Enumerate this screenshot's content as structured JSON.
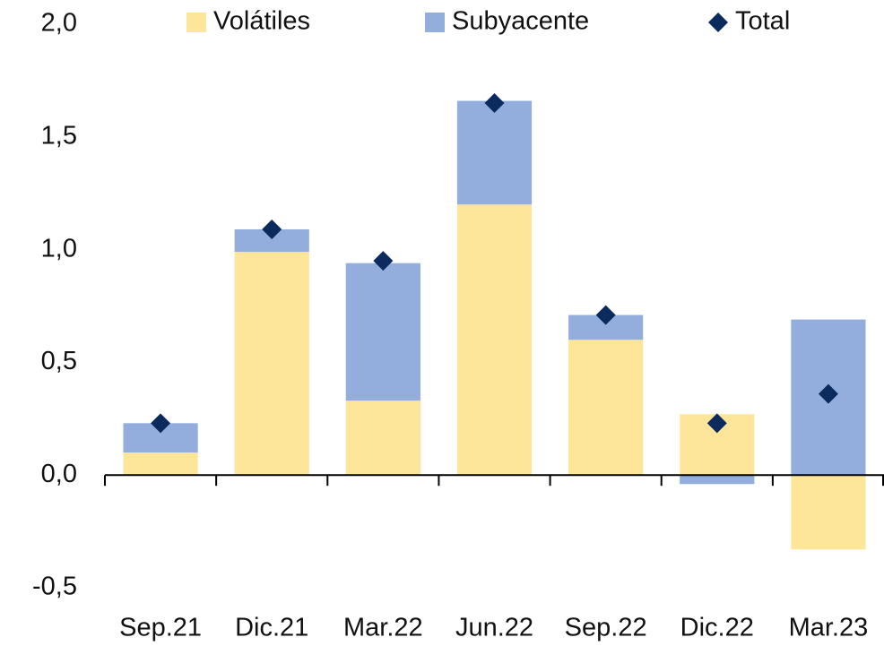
{
  "chart_data": {
    "type": "bar",
    "stacked": true,
    "categories": [
      "Sep.21",
      "Dic.21",
      "Mar.22",
      "Jun.22",
      "Sep.22",
      "Dic.22",
      "Mar.23"
    ],
    "series": [
      {
        "name": "Volátiles",
        "type": "bar",
        "color": "#fde69a",
        "values": [
          0.1,
          0.99,
          0.33,
          1.2,
          0.6,
          0.27,
          -0.33
        ]
      },
      {
        "name": "Subyacente",
        "type": "bar",
        "color": "#93addc",
        "values": [
          0.13,
          0.1,
          0.61,
          0.46,
          0.11,
          -0.04,
          0.69
        ]
      },
      {
        "name": "Total",
        "type": "point",
        "color": "#0b2a5e",
        "values": [
          0.23,
          1.09,
          0.95,
          1.65,
          0.71,
          0.23,
          0.36
        ]
      }
    ],
    "ylim": [
      -0.5,
      2.0
    ],
    "yticks": [
      {
        "value": -0.5,
        "label": "-0,5"
      },
      {
        "value": 0,
        "label": "0,0"
      },
      {
        "value": 0.5,
        "label": "0,5"
      },
      {
        "value": 1.0,
        "label": "1,0"
      },
      {
        "value": 1.5,
        "label": "1,5"
      },
      {
        "value": 2.0,
        "label": "2,0"
      }
    ],
    "grid": false
  }
}
